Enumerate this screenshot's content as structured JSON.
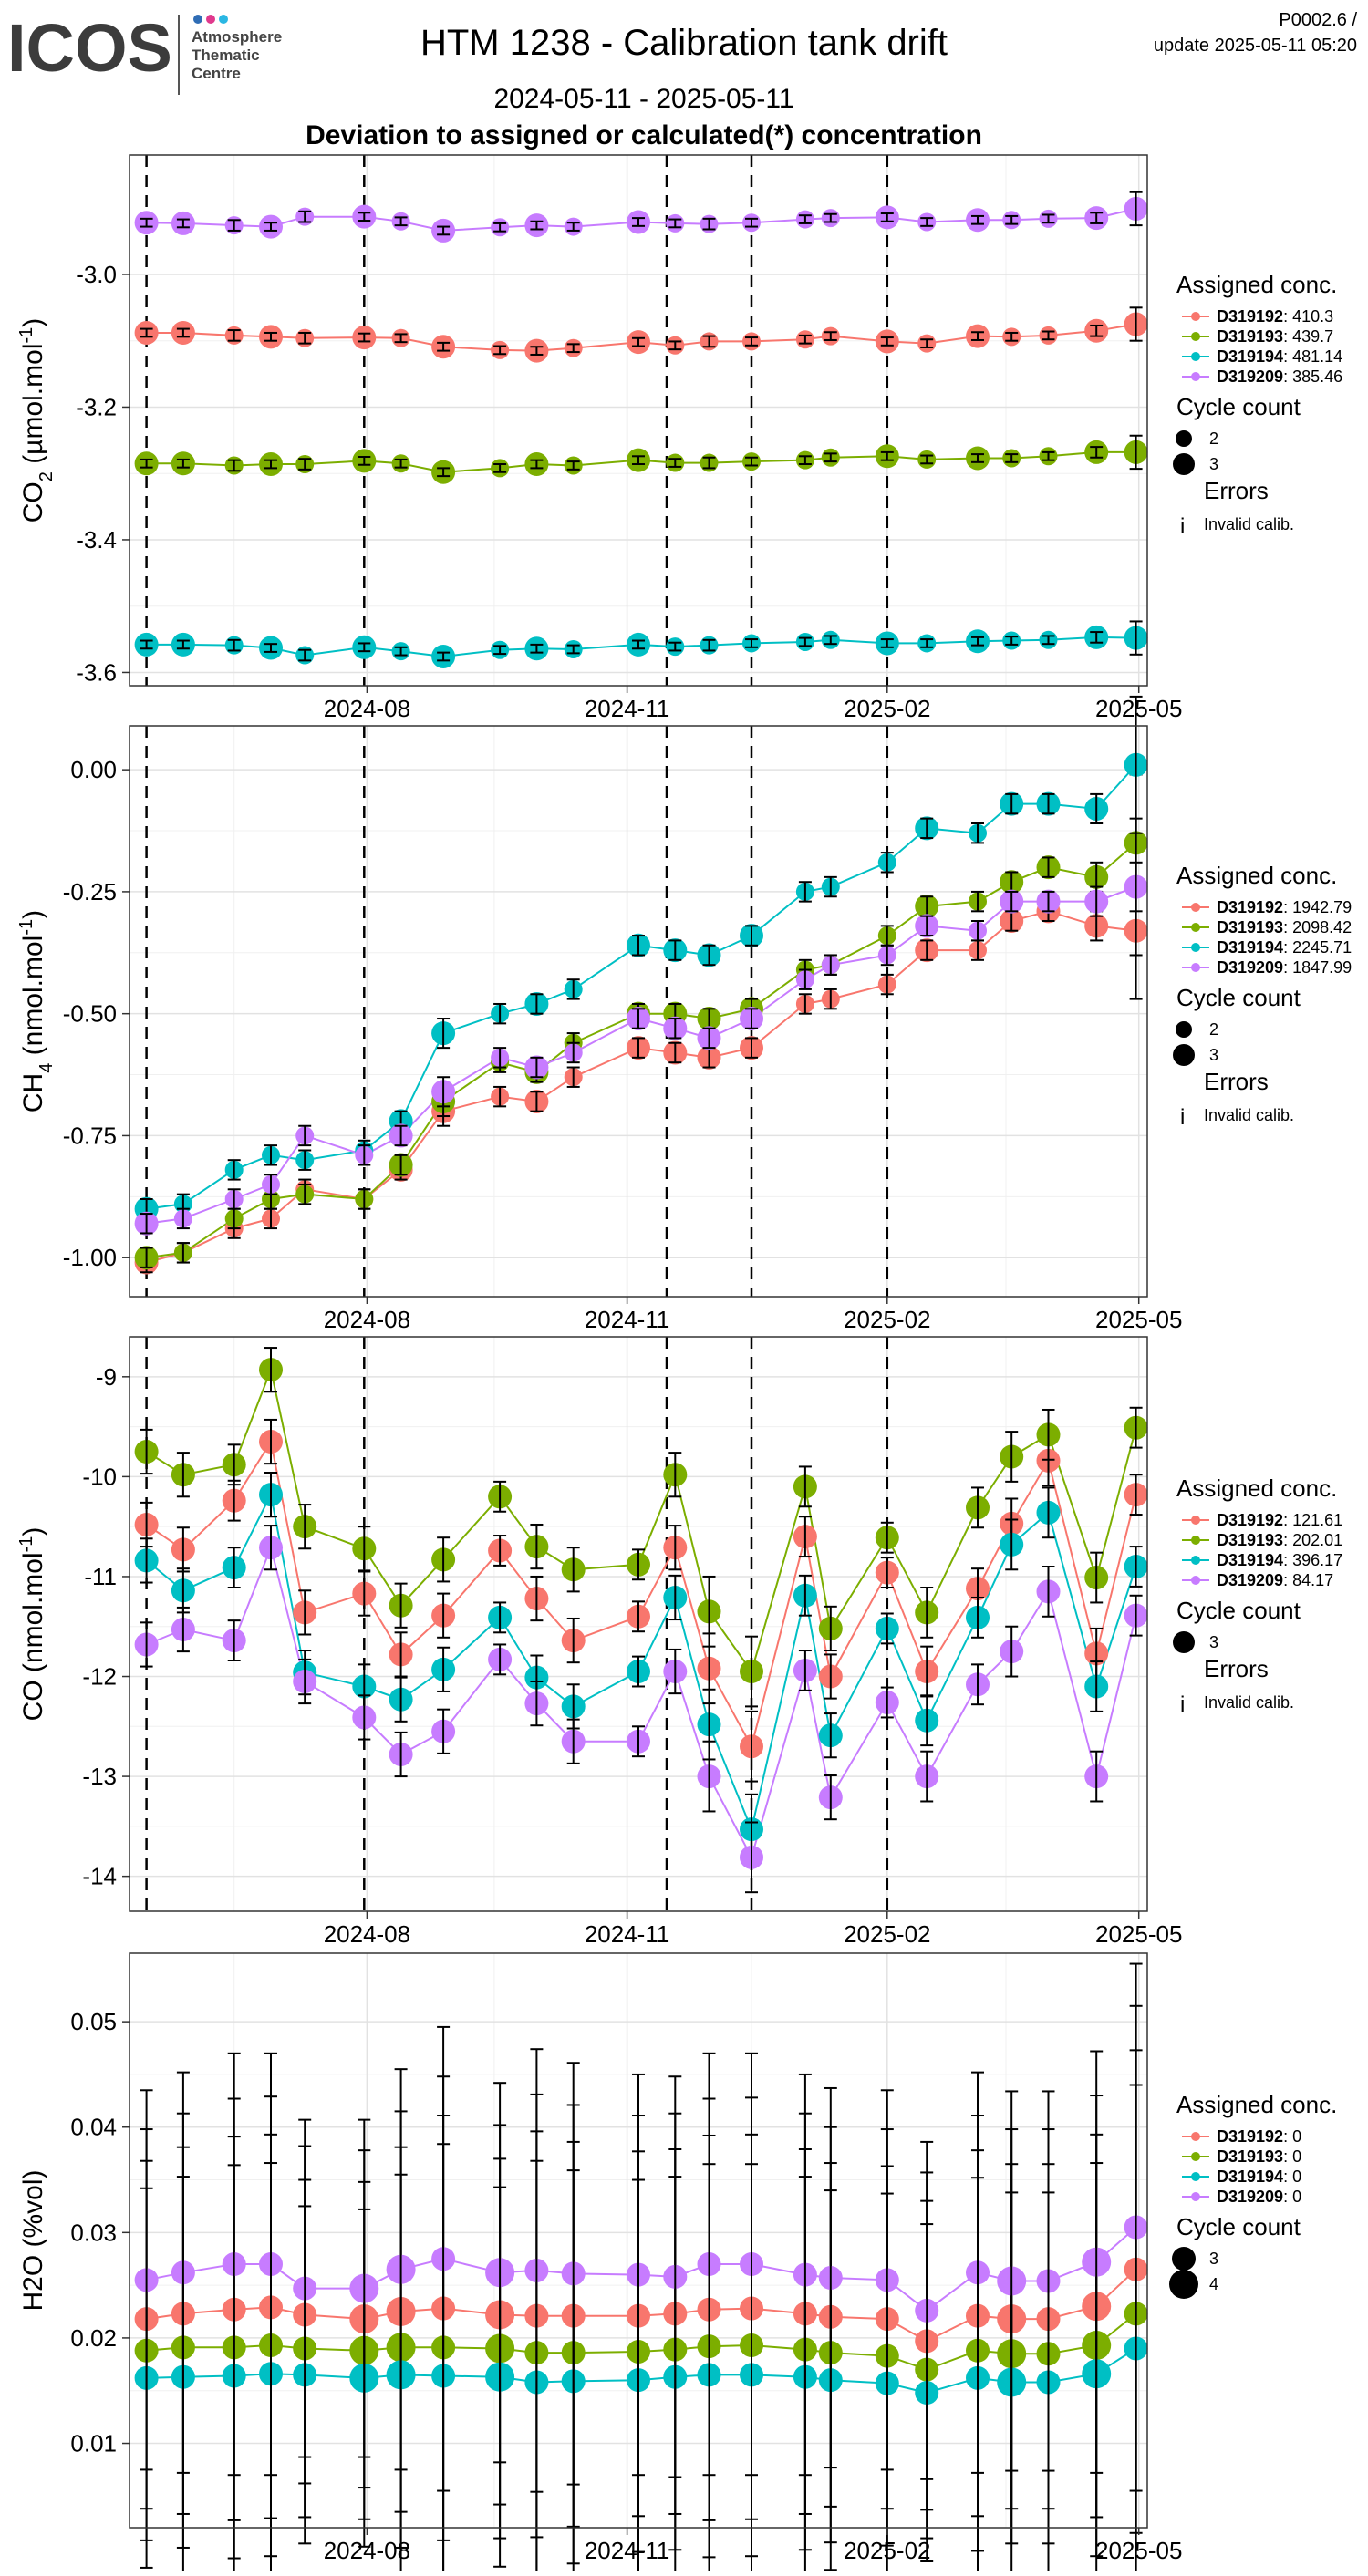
{
  "header": {
    "logo_text": "ICOS",
    "logo_sub": [
      "Atmosphere",
      "Thematic",
      "Centre"
    ],
    "title": "HTM 1238 - Calibration tank drift",
    "subtitle": "2024-05-11 - 2025-05-11",
    "subtitle2": "Deviation to assigned or calculated(*) concentration",
    "code": "P0002.6 /",
    "update": "update  2025-05-11 05:20"
  },
  "colors": {
    "D319192": "#F8766D",
    "D319193": "#7CAE00",
    "D319194": "#00BFC4",
    "D319209": "#C77CFF"
  },
  "chart_data": [
    {
      "type": "scatter",
      "gas": "CO2",
      "ylabel": "CO2 (µmol.mol-1)",
      "ylim": [
        -3.62,
        -2.82
      ],
      "yticks": [
        -3.0,
        -3.2,
        -3.4,
        -3.6
      ],
      "ytick_labels": [
        "-3.0",
        "-3.2",
        "-3.4",
        "-3.6"
      ],
      "x_ticks": [
        "2024-08-01",
        "2024-11-01",
        "2025-02-01",
        "2025-05-01"
      ],
      "x_tick_labels": [
        "2024-08",
        "2024-11",
        "2025-02",
        "2025-05"
      ],
      "invalid_dates": [
        "2024-05-15",
        "2024-07-31",
        "2024-11-15",
        "2024-12-15",
        "2025-02-01"
      ],
      "legend": {
        "title": "Assigned conc.",
        "entries": [
          {
            "id": "D319192",
            "value": ": 410.3"
          },
          {
            "id": "D319193",
            "value": ": 439.7"
          },
          {
            "id": "D319194",
            "value": ": 481.14"
          },
          {
            "id": "D319209",
            "value": ": 385.46"
          }
        ],
        "cycle_title": "Cycle count",
        "cycle_entries": [
          "2",
          "3"
        ],
        "errors_title": "Errors",
        "errors_entry": "Invalid calib."
      },
      "x": [
        "2024-05-15",
        "2024-05-28",
        "2024-06-15",
        "2024-06-28",
        "2024-07-10",
        "2024-07-31",
        "2024-08-13",
        "2024-08-28",
        "2024-09-17",
        "2024-09-30",
        "2024-10-13",
        "2024-11-05",
        "2024-11-18",
        "2024-11-30",
        "2024-12-15",
        "2025-01-03",
        "2025-01-12",
        "2025-02-01",
        "2025-02-15",
        "2025-03-05",
        "2025-03-17",
        "2025-03-30",
        "2025-04-16",
        "2025-04-30"
      ],
      "series": [
        {
          "name": "D319192",
          "values": [
            -3.088,
            -3.088,
            -3.092,
            -3.094,
            -3.096,
            -3.095,
            -3.096,
            -3.109,
            -3.114,
            -3.115,
            -3.111,
            -3.102,
            -3.107,
            -3.101,
            -3.101,
            -3.098,
            -3.093,
            -3.101,
            -3.104,
            -3.093,
            -3.094,
            -3.092,
            -3.085,
            -3.075
          ]
        },
        {
          "name": "D319193",
          "values": [
            -3.285,
            -3.285,
            -3.288,
            -3.286,
            -3.286,
            -3.281,
            -3.285,
            -3.298,
            -3.292,
            -3.286,
            -3.288,
            -3.28,
            -3.284,
            -3.284,
            -3.282,
            -3.28,
            -3.276,
            -3.274,
            -3.279,
            -3.277,
            -3.277,
            -3.274,
            -3.268,
            -3.268
          ]
        },
        {
          "name": "D319194",
          "values": [
            -3.558,
            -3.558,
            -3.559,
            -3.563,
            -3.574,
            -3.562,
            -3.568,
            -3.576,
            -3.566,
            -3.564,
            -3.565,
            -3.558,
            -3.561,
            -3.559,
            -3.556,
            -3.554,
            -3.551,
            -3.556,
            -3.556,
            -3.553,
            -3.552,
            -3.551,
            -3.547,
            -3.548
          ]
        },
        {
          "name": "D319209",
          "values": [
            -2.922,
            -2.923,
            -2.926,
            -2.928,
            -2.913,
            -2.913,
            -2.92,
            -2.934,
            -2.929,
            -2.926,
            -2.928,
            -2.921,
            -2.923,
            -2.924,
            -2.922,
            -2.917,
            -2.915,
            -2.914,
            -2.921,
            -2.918,
            -2.918,
            -2.916,
            -2.915,
            -2.901
          ]
        }
      ],
      "cycle_counts": [
        3,
        3,
        2,
        3,
        2,
        3,
        2,
        3,
        2,
        3,
        2,
        3,
        2,
        2,
        2,
        2,
        2,
        3,
        2,
        3,
        2,
        2,
        3,
        3
      ],
      "error_bars": [
        0.006,
        0.006,
        0.008,
        0.006,
        0.008,
        0.006,
        0.006,
        0.006,
        0.006,
        0.006,
        0.006,
        0.006,
        0.006,
        0.008,
        0.006,
        0.006,
        0.006,
        0.006,
        0.006,
        0.006,
        0.006,
        0.006,
        0.008,
        0.025
      ]
    },
    {
      "type": "scatter",
      "gas": "CH4",
      "ylabel": "CH4 (nmol.mol-1)",
      "ylim": [
        -1.08,
        0.09
      ],
      "yticks": [
        0.0,
        -0.25,
        -0.5,
        -0.75,
        -1.0
      ],
      "ytick_labels": [
        "0.00",
        "-0.25",
        "-0.50",
        "-0.75",
        "-1.00"
      ],
      "x_ticks": [
        "2024-08-01",
        "2024-11-01",
        "2025-02-01",
        "2025-05-01"
      ],
      "x_tick_labels": [
        "2024-08",
        "2024-11",
        "2025-02",
        "2025-05"
      ],
      "invalid_dates": [
        "2024-05-15",
        "2024-07-31",
        "2024-11-15",
        "2024-12-15",
        "2025-02-01"
      ],
      "legend": {
        "title": "Assigned conc.",
        "entries": [
          {
            "id": "D319192",
            "value": ": 1942.79"
          },
          {
            "id": "D319193",
            "value": ": 2098.42"
          },
          {
            "id": "D319194",
            "value": ": 2245.71"
          },
          {
            "id": "D319209",
            "value": ": 1847.99"
          }
        ],
        "cycle_title": "Cycle count",
        "cycle_entries": [
          "2",
          "3"
        ],
        "errors_title": "Errors",
        "errors_entry": "Invalid calib."
      },
      "x": [
        "2024-05-15",
        "2024-05-28",
        "2024-06-15",
        "2024-06-28",
        "2024-07-10",
        "2024-07-31",
        "2024-08-13",
        "2024-08-28",
        "2024-09-17",
        "2024-09-30",
        "2024-10-13",
        "2024-11-05",
        "2024-11-18",
        "2024-11-30",
        "2024-12-15",
        "2025-01-03",
        "2025-01-12",
        "2025-02-01",
        "2025-02-15",
        "2025-03-05",
        "2025-03-17",
        "2025-03-30",
        "2025-04-16",
        "2025-04-30"
      ],
      "series": [
        {
          "name": "D319192",
          "values": [
            -1.01,
            -0.99,
            -0.94,
            -0.92,
            -0.86,
            -0.88,
            -0.82,
            -0.7,
            -0.67,
            -0.68,
            -0.63,
            -0.57,
            -0.58,
            -0.59,
            -0.57,
            -0.48,
            -0.47,
            -0.44,
            -0.37,
            -0.37,
            -0.31,
            -0.29,
            -0.32,
            -0.33
          ]
        },
        {
          "name": "D319193",
          "values": [
            -1.0,
            -0.99,
            -0.92,
            -0.88,
            -0.87,
            -0.88,
            -0.81,
            -0.68,
            -0.6,
            -0.62,
            -0.56,
            -0.5,
            -0.5,
            -0.51,
            -0.49,
            -0.41,
            -0.4,
            -0.34,
            -0.28,
            -0.27,
            -0.23,
            -0.2,
            -0.22,
            -0.15
          ]
        },
        {
          "name": "D319194",
          "values": [
            -0.9,
            -0.89,
            -0.82,
            -0.79,
            -0.8,
            -0.78,
            -0.72,
            -0.54,
            -0.5,
            -0.48,
            -0.45,
            -0.36,
            -0.37,
            -0.38,
            -0.34,
            -0.25,
            -0.24,
            -0.19,
            -0.12,
            -0.13,
            -0.07,
            -0.07,
            -0.08,
            0.01
          ]
        },
        {
          "name": "D319209",
          "values": [
            -0.93,
            -0.92,
            -0.88,
            -0.85,
            -0.75,
            -0.79,
            -0.75,
            -0.66,
            -0.59,
            -0.61,
            -0.58,
            -0.51,
            -0.53,
            -0.55,
            -0.51,
            -0.43,
            -0.4,
            -0.38,
            -0.32,
            -0.33,
            -0.27,
            -0.27,
            -0.27,
            -0.24
          ]
        }
      ],
      "cycle_counts": [
        3,
        2,
        2,
        2,
        2,
        2,
        3,
        3,
        2,
        3,
        2,
        3,
        3,
        3,
        3,
        2,
        2,
        2,
        3,
        2,
        3,
        3,
        3,
        3
      ],
      "error_bars": [
        0.02,
        0.02,
        0.02,
        0.02,
        0.02,
        0.02,
        0.02,
        0.03,
        0.02,
        0.02,
        0.02,
        0.02,
        0.02,
        0.02,
        0.02,
        0.02,
        0.02,
        0.02,
        0.02,
        0.02,
        0.02,
        0.02,
        0.03,
        0.14
      ]
    },
    {
      "type": "scatter",
      "gas": "CO",
      "ylabel": "CO (nmol.mol-1)",
      "ylim": [
        -14.35,
        -8.6
      ],
      "yticks": [
        -9,
        -10,
        -11,
        -12,
        -13,
        -14
      ],
      "ytick_labels": [
        "-9",
        "-10",
        "-11",
        "-12",
        "-13",
        "-14"
      ],
      "x_ticks": [
        "2024-08-01",
        "2024-11-01",
        "2025-02-01",
        "2025-05-01"
      ],
      "x_tick_labels": [
        "2024-08",
        "2024-11",
        "2025-02",
        "2025-05"
      ],
      "invalid_dates": [
        "2024-05-15",
        "2024-07-31",
        "2024-11-15",
        "2024-12-15",
        "2025-02-01"
      ],
      "legend": {
        "title": "Assigned conc.",
        "entries": [
          {
            "id": "D319192",
            "value": ": 121.61"
          },
          {
            "id": "D319193",
            "value": ": 202.01"
          },
          {
            "id": "D319194",
            "value": ": 396.17"
          },
          {
            "id": "D319209",
            "value": ": 84.17"
          }
        ],
        "cycle_title": "Cycle count",
        "cycle_entries": [
          "3"
        ],
        "errors_title": "Errors",
        "errors_entry": "Invalid calib."
      },
      "x": [
        "2024-05-15",
        "2024-05-28",
        "2024-06-15",
        "2024-06-28",
        "2024-07-10",
        "2024-07-31",
        "2024-08-13",
        "2024-08-28",
        "2024-09-17",
        "2024-09-30",
        "2024-10-13",
        "2024-11-05",
        "2024-11-18",
        "2024-11-30",
        "2024-12-15",
        "2025-01-03",
        "2025-01-12",
        "2025-02-01",
        "2025-02-15",
        "2025-03-05",
        "2025-03-17",
        "2025-03-30",
        "2025-04-16",
        "2025-04-30"
      ],
      "series": [
        {
          "name": "D319192",
          "values": [
            -10.48,
            -10.73,
            -10.24,
            -9.65,
            -11.36,
            -11.17,
            -11.78,
            -11.39,
            -10.74,
            -11.22,
            -11.64,
            -11.4,
            -10.71,
            -11.92,
            -12.7,
            -10.6,
            -12.0,
            -10.96,
            -11.95,
            -11.12,
            -10.47,
            -9.84,
            -11.77,
            -10.18
          ]
        },
        {
          "name": "D319193",
          "values": [
            -9.75,
            -9.98,
            -9.88,
            -8.93,
            -10.5,
            -10.72,
            -11.29,
            -10.83,
            -10.2,
            -10.7,
            -10.93,
            -10.88,
            -9.98,
            -11.35,
            -11.95,
            -10.1,
            -11.52,
            -10.61,
            -11.36,
            -10.31,
            -9.8,
            -9.58,
            -11.01,
            -9.51
          ]
        },
        {
          "name": "D319194",
          "values": [
            -10.84,
            -11.14,
            -10.91,
            -10.18,
            -11.96,
            -12.1,
            -12.23,
            -11.93,
            -11.41,
            -12.01,
            -12.3,
            -11.95,
            -11.21,
            -12.48,
            -13.53,
            -11.19,
            -12.59,
            -11.52,
            -12.44,
            -11.41,
            -10.68,
            -10.36,
            -12.1,
            -10.9
          ]
        },
        {
          "name": "D319209",
          "values": [
            -11.68,
            -11.53,
            -11.64,
            -10.71,
            -12.05,
            -12.41,
            -12.78,
            -12.55,
            -11.83,
            -12.27,
            -12.65,
            -12.65,
            -11.95,
            -13.0,
            -13.81,
            -11.94,
            -13.21,
            -12.26,
            -13.0,
            -12.08,
            -11.75,
            -11.15,
            -13.0,
            -11.39
          ]
        }
      ],
      "cycle_counts": [
        3,
        3,
        3,
        3,
        3,
        3,
        3,
        3,
        3,
        3,
        3,
        3,
        3,
        3,
        3,
        3,
        3,
        3,
        3,
        3,
        3,
        3,
        3,
        3
      ],
      "error_bars": [
        0.22,
        0.22,
        0.2,
        0.22,
        0.22,
        0.22,
        0.22,
        0.22,
        0.15,
        0.22,
        0.22,
        0.15,
        0.22,
        0.35,
        0.35,
        0.2,
        0.22,
        0.15,
        0.25,
        0.2,
        0.25,
        0.25,
        0.25,
        0.2
      ]
    },
    {
      "type": "scatter",
      "gas": "H2O",
      "ylabel": "H2O (%vol)",
      "ylim": [
        0.002,
        0.0565
      ],
      "yticks": [
        0.05,
        0.04,
        0.03,
        0.02,
        0.01
      ],
      "ytick_labels": [
        "0.05",
        "0.04",
        "0.03",
        "0.02",
        "0.01"
      ],
      "x_ticks": [
        "2024-08-01",
        "2024-11-01",
        "2025-02-01",
        "2025-05-01"
      ],
      "x_tick_labels": [
        "2024-08",
        "2024-11",
        "2025-02",
        "2025-05"
      ],
      "invalid_dates": [],
      "legend": {
        "title": "Assigned conc.",
        "entries": [
          {
            "id": "D319192",
            "value": ": 0"
          },
          {
            "id": "D319193",
            "value": ": 0"
          },
          {
            "id": "D319194",
            "value": ": 0"
          },
          {
            "id": "D319209",
            "value": ": 0"
          }
        ],
        "cycle_title": "Cycle count",
        "cycle_entries": [
          "3",
          "4"
        ],
        "errors_title": "",
        "errors_entry": ""
      },
      "x": [
        "2024-05-15",
        "2024-05-28",
        "2024-06-15",
        "2024-06-28",
        "2024-07-10",
        "2024-07-31",
        "2024-08-13",
        "2024-08-28",
        "2024-09-17",
        "2024-09-30",
        "2024-10-13",
        "2024-11-05",
        "2024-11-18",
        "2024-11-30",
        "2024-12-15",
        "2025-01-03",
        "2025-01-12",
        "2025-02-01",
        "2025-02-15",
        "2025-03-05",
        "2025-03-17",
        "2025-03-30",
        "2025-04-16",
        "2025-04-30"
      ],
      "series": [
        {
          "name": "D319192",
          "values": [
            0.0218,
            0.0223,
            0.0227,
            0.0229,
            0.0222,
            0.0218,
            0.0225,
            0.0228,
            0.0222,
            0.0221,
            0.0221,
            0.0221,
            0.0223,
            0.0227,
            0.0228,
            0.0223,
            0.022,
            0.0218,
            0.0197,
            0.0221,
            0.0218,
            0.0218,
            0.023,
            0.0265
          ]
        },
        {
          "name": "D319193",
          "values": [
            0.0188,
            0.0191,
            0.0191,
            0.0193,
            0.019,
            0.0188,
            0.0191,
            0.0191,
            0.019,
            0.0186,
            0.0186,
            0.0187,
            0.0189,
            0.0192,
            0.0193,
            0.0189,
            0.0186,
            0.0183,
            0.017,
            0.0188,
            0.0185,
            0.0185,
            0.0193,
            0.0223
          ]
        },
        {
          "name": "D319194",
          "values": [
            0.0162,
            0.0163,
            0.0164,
            0.0166,
            0.0165,
            0.0162,
            0.0165,
            0.0164,
            0.0163,
            0.0158,
            0.0159,
            0.016,
            0.0163,
            0.0165,
            0.0165,
            0.0163,
            0.016,
            0.0157,
            0.0148,
            0.0162,
            0.0158,
            0.0158,
            0.0166,
            0.019
          ]
        },
        {
          "name": "D319209",
          "values": [
            0.0255,
            0.0262,
            0.027,
            0.027,
            0.0247,
            0.0247,
            0.0265,
            0.0275,
            0.0262,
            0.0264,
            0.0261,
            0.026,
            0.0258,
            0.027,
            0.027,
            0.026,
            0.0257,
            0.0255,
            0.0226,
            0.0262,
            0.0254,
            0.0254,
            0.0272,
            0.0305
          ]
        }
      ],
      "cycle_counts": [
        3,
        3,
        3,
        3,
        3,
        4,
        4,
        3,
        4,
        3,
        3,
        3,
        3,
        3,
        3,
        3,
        3,
        3,
        3,
        3,
        4,
        3,
        4,
        3
      ],
      "error_bars": [
        0.018,
        0.019,
        0.02,
        0.02,
        0.016,
        0.016,
        0.019,
        0.022,
        0.018,
        0.021,
        0.02,
        0.019,
        0.019,
        0.02,
        0.02,
        0.019,
        0.018,
        0.018,
        0.016,
        0.019,
        0.018,
        0.018,
        0.02,
        0.025
      ]
    }
  ]
}
